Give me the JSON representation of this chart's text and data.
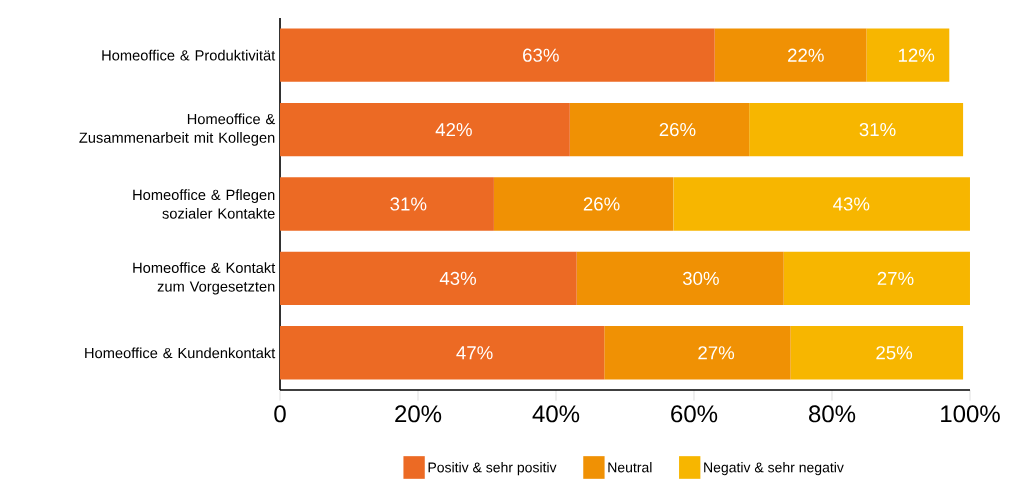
{
  "chart_data": {
    "type": "bar",
    "orientation": "horizontal",
    "stacked": true,
    "categories": [
      "Homeoffice & Produktivität",
      "Homeoffice & Zusammenarbeit mit Kollegen",
      "Homeoffice & Pflegen sozialer Kontakte",
      "Homeoffice & Kontakt zum Vorgesetzten",
      "Homeoffice & Kundenkontakt"
    ],
    "series": [
      {
        "name": "Positiv & sehr positiv",
        "color": "#ec6a24",
        "values": [
          63,
          42,
          31,
          43,
          47
        ],
        "value_labels": [
          "63%",
          "42%",
          "31%",
          "43%",
          "47%"
        ]
      },
      {
        "name": "Neutral",
        "color": "#f09104",
        "values": [
          22,
          26,
          26,
          30,
          27
        ],
        "value_labels": [
          "22%",
          "26%",
          "26%",
          "30%",
          "27%"
        ]
      },
      {
        "name": "Negativ & sehr negativ",
        "color": "#f7b600",
        "values": [
          12,
          31,
          43,
          27,
          25
        ],
        "value_labels": [
          "12%",
          "31%",
          "43%",
          "27%",
          "25%"
        ]
      }
    ],
    "xlim": [
      0,
      100
    ],
    "xticks": [
      0,
      {
        "value": 20,
        "label": "20%"
      },
      {
        "value": 40,
        "label": "40%"
      },
      {
        "value": 60,
        "label": "60%"
      },
      {
        "value": 80,
        "label": "80%"
      },
      {
        "value": 100,
        "label": "100%"
      }
    ],
    "grid": false,
    "legend": "bottom"
  }
}
